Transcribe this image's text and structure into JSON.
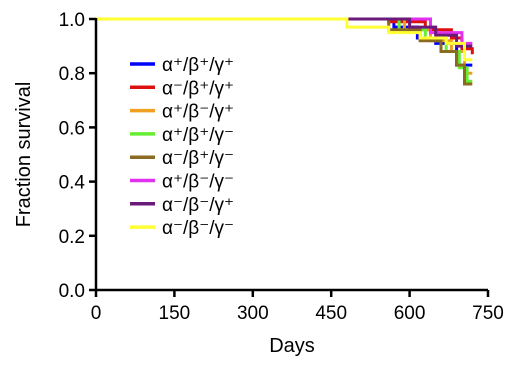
{
  "chart_data": {
    "type": "line",
    "step": true,
    "xlabel": "Days",
    "ylabel": "Fraction survival",
    "xlim": [
      0,
      750
    ],
    "ylim": [
      0.0,
      1.0
    ],
    "xticks": [
      0,
      150,
      300,
      450,
      600,
      750
    ],
    "yticks": [
      0.0,
      0.2,
      0.4,
      0.6,
      0.8,
      1.0
    ],
    "xtick_labels": [
      "0",
      "150",
      "300",
      "450",
      "600",
      "750"
    ],
    "ytick_labels": [
      "0.0",
      "0.2",
      "0.4",
      "0.6",
      "0.8",
      "1.0"
    ],
    "grid": false,
    "legend_position": "left",
    "series": [
      {
        "name": "α⁺/β⁺/γ⁺",
        "color": "#0000ff",
        "x": [
          0,
          570,
          615,
          650,
          690,
          720
        ],
        "y": [
          1.0,
          0.97,
          0.93,
          0.91,
          0.83,
          0.83
        ]
      },
      {
        "name": "α⁻/β⁺/γ⁺",
        "color": "#dd1010",
        "x": [
          0,
          560,
          630,
          680,
          700,
          720
        ],
        "y": [
          1.0,
          0.99,
          0.96,
          0.93,
          0.89,
          0.87
        ]
      },
      {
        "name": "α⁺/β⁻/γ⁺",
        "color": "#f0a020",
        "x": [
          0,
          590,
          640,
          680,
          705,
          720
        ],
        "y": [
          1.0,
          0.96,
          0.92,
          0.88,
          0.8,
          0.8
        ]
      },
      {
        "name": "α⁺/β⁺/γ⁻",
        "color": "#66ee33",
        "x": [
          0,
          580,
          630,
          670,
          695,
          710,
          720
        ],
        "y": [
          1.0,
          0.96,
          0.93,
          0.88,
          0.82,
          0.77,
          0.77
        ]
      },
      {
        "name": "α⁻/β⁺/γ⁻",
        "color": "#8b6a22",
        "x": [
          0,
          560,
          620,
          660,
          690,
          705,
          720
        ],
        "y": [
          1.0,
          0.96,
          0.92,
          0.88,
          0.83,
          0.76,
          0.76
        ]
      },
      {
        "name": "α⁺/β⁻/γ⁻",
        "color": "#e030f0",
        "x": [
          0,
          550,
          640,
          700,
          720
        ],
        "y": [
          1.0,
          1.0,
          0.95,
          0.91,
          0.91
        ]
      },
      {
        "name": "α⁻/β⁻/γ⁺",
        "color": "#6a1a7a",
        "x": [
          0,
          600,
          650,
          690,
          720
        ],
        "y": [
          1.0,
          0.97,
          0.94,
          0.9,
          0.9
        ]
      },
      {
        "name": "α⁻/β⁻/γ⁻",
        "color": "#ffff33",
        "x": [
          0,
          480,
          560,
          620,
          670,
          705,
          720
        ],
        "y": [
          1.0,
          0.97,
          0.95,
          0.93,
          0.91,
          0.85,
          0.85
        ]
      }
    ]
  }
}
